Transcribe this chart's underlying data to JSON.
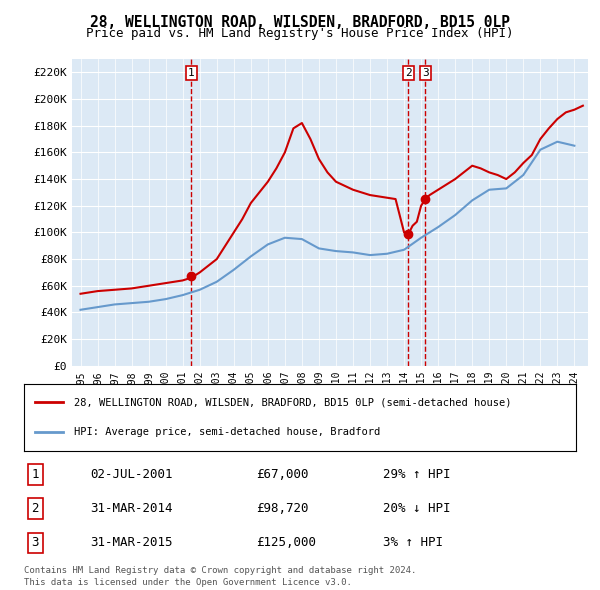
{
  "title": "28, WELLINGTON ROAD, WILSDEN, BRADFORD, BD15 0LP",
  "subtitle": "Price paid vs. HM Land Registry's House Price Index (HPI)",
  "red_label": "28, WELLINGTON ROAD, WILSDEN, BRADFORD, BD15 0LP (semi-detached house)",
  "blue_label": "HPI: Average price, semi-detached house, Bradford",
  "footer": "Contains HM Land Registry data © Crown copyright and database right 2024.\nThis data is licensed under the Open Government Licence v3.0.",
  "transactions": [
    {
      "num": 1,
      "date": "02-JUL-2001",
      "price": 67000,
      "pct": "29%",
      "dir": "↑"
    },
    {
      "num": 2,
      "date": "31-MAR-2014",
      "price": 98720,
      "pct": "20%",
      "dir": "↓"
    },
    {
      "num": 3,
      "date": "31-MAR-2015",
      "price": 125000,
      "pct": "3%",
      "dir": "↑"
    }
  ],
  "transaction_years": [
    2001.5,
    2014.25,
    2015.25
  ],
  "transaction_prices": [
    67000,
    98720,
    125000
  ],
  "ylim": [
    0,
    230000
  ],
  "yticks": [
    0,
    20000,
    40000,
    60000,
    80000,
    100000,
    120000,
    140000,
    160000,
    180000,
    200000,
    220000
  ],
  "xlim_start": 1994.5,
  "xlim_end": 2024.8,
  "background_color": "#dce9f5",
  "plot_bg_color": "#dce9f5",
  "red_color": "#cc0000",
  "blue_color": "#6699cc",
  "grid_color": "#ffffff",
  "years": [
    1995,
    1996,
    1997,
    1998,
    1999,
    2000,
    2001,
    2002,
    2003,
    2004,
    2005,
    2006,
    2007,
    2008,
    2009,
    2010,
    2011,
    2012,
    2013,
    2014,
    2015,
    2016,
    2017,
    2018,
    2019,
    2020,
    2021,
    2022,
    2023,
    2024
  ],
  "hpi_values": [
    42000,
    44000,
    46000,
    47000,
    48000,
    50000,
    53000,
    57000,
    63000,
    72000,
    82000,
    91000,
    96000,
    95000,
    88000,
    86000,
    85000,
    83000,
    84000,
    87000,
    96000,
    104000,
    113000,
    124000,
    132000,
    133000,
    143000,
    162000,
    168000,
    165000
  ],
  "price_paid_years": [
    1995.0,
    1995.5,
    1996.0,
    1996.5,
    1997.0,
    1997.5,
    1998.0,
    1998.5,
    1999.0,
    1999.5,
    2000.0,
    2000.5,
    2001.0,
    2001.25,
    2001.5,
    2001.75,
    2002.0,
    2002.5,
    2003.0,
    2003.5,
    2004.0,
    2004.5,
    2005.0,
    2005.5,
    2006.0,
    2006.5,
    2007.0,
    2007.5,
    2008.0,
    2008.5,
    2009.0,
    2009.5,
    2010.0,
    2010.5,
    2011.0,
    2011.5,
    2012.0,
    2012.5,
    2013.0,
    2013.5,
    2014.0,
    2014.25,
    2014.5,
    2014.75,
    2015.0,
    2015.25,
    2015.5,
    2015.75,
    2016.0,
    2016.5,
    2017.0,
    2017.5,
    2018.0,
    2018.5,
    2019.0,
    2019.5,
    2020.0,
    2020.5,
    2021.0,
    2021.5,
    2022.0,
    2022.5,
    2023.0,
    2023.5,
    2024.0,
    2024.5
  ],
  "price_paid_values": [
    54000,
    55000,
    56000,
    56500,
    57000,
    57500,
    58000,
    59000,
    60000,
    61000,
    62000,
    63000,
    64000,
    65000,
    67000,
    68000,
    70000,
    75000,
    80000,
    90000,
    100000,
    110000,
    122000,
    130000,
    138000,
    148000,
    160000,
    178000,
    182000,
    170000,
    155000,
    145000,
    138000,
    135000,
    132000,
    130000,
    128000,
    127000,
    126000,
    125000,
    100000,
    98720,
    105000,
    108000,
    120000,
    125000,
    128000,
    130000,
    132000,
    136000,
    140000,
    145000,
    150000,
    148000,
    145000,
    143000,
    140000,
    145000,
    152000,
    158000,
    170000,
    178000,
    185000,
    190000,
    192000,
    195000
  ]
}
